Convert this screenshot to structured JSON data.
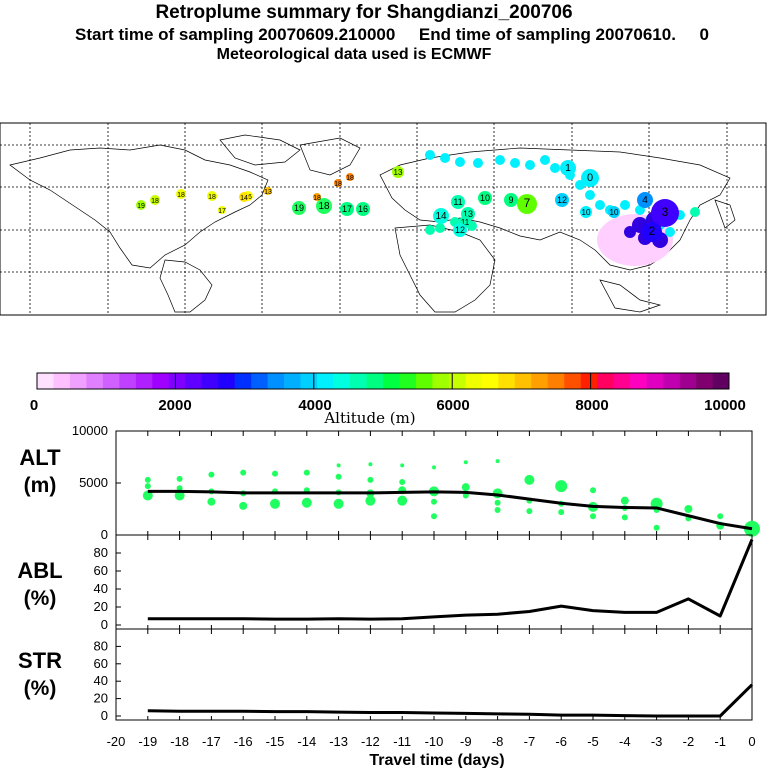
{
  "header": {
    "title": "Retroplume summary for Shangdianzi_200706",
    "line2": "Start time of sampling 20070609.210000     End time of sampling 20070610.     0",
    "line3": "Meteorological data used is ECMWF"
  },
  "colorbar": {
    "label": "Altitude (m)",
    "ticks": [
      "0",
      "2000",
      "4000",
      "6000",
      "8000",
      "10000"
    ],
    "colors": [
      "#ffe0ff",
      "#ffc0ff",
      "#f0a0ff",
      "#e080ff",
      "#d060ff",
      "#c040ff",
      "#b020ff",
      "#a000ff",
      "#8000ff",
      "#6000ff",
      "#4000ff",
      "#2000ff",
      "#0030ff",
      "#0060ff",
      "#0090ff",
      "#00b0ff",
      "#00d0ff",
      "#00f0ff",
      "#00ffe0",
      "#00ffb0",
      "#00ff80",
      "#00ff40",
      "#20ff20",
      "#60ff00",
      "#a0ff00",
      "#c8ff00",
      "#f0ff00",
      "#ffff00",
      "#ffe000",
      "#ffc000",
      "#ffa000",
      "#ff8000",
      "#ff5000",
      "#ff2000",
      "#ff0060",
      "#ff0090",
      "#ff00c0",
      "#e000c0",
      "#c000b0",
      "#a00090",
      "#800070",
      "#600060"
    ]
  },
  "map_points": [
    {
      "label": "19",
      "color": "#a0ff00"
    },
    {
      "label": "18",
      "color": "#c8ff00"
    },
    {
      "label": "18",
      "color": "#f0ff00"
    },
    {
      "label": "18",
      "color": "#f0ff00"
    },
    {
      "label": "17",
      "color": "#f0ff00"
    },
    {
      "label": "16",
      "color": "#ffff00"
    },
    {
      "label": "14",
      "color": "#ffe000"
    },
    {
      "label": "13",
      "color": "#ffc000"
    },
    {
      "label": "19",
      "color": "#20ff60"
    },
    {
      "label": "18",
      "color": "#20ff60"
    },
    {
      "label": "18",
      "color": "#ffa000"
    },
    {
      "label": "17",
      "color": "#00ff80"
    },
    {
      "label": "16",
      "color": "#00ff80"
    },
    {
      "label": "18",
      "color": "#ff8000"
    },
    {
      "label": "13",
      "color": "#a0ff00"
    },
    {
      "label": "18",
      "color": "#ff8000"
    },
    {
      "label": "11",
      "color": "#00ffb0"
    },
    {
      "label": "10",
      "color": "#00ff80"
    },
    {
      "label": "9",
      "color": "#00ff80"
    },
    {
      "label": "7",
      "color": "#60ff00"
    },
    {
      "label": "14",
      "color": "#00ffe0"
    },
    {
      "label": "13",
      "color": "#00ffb0"
    },
    {
      "label": "11",
      "color": "#00ffb0"
    },
    {
      "label": "12",
      "color": "#00ffe0"
    },
    {
      "label": "12",
      "color": "#00d0ff"
    },
    {
      "label": "10",
      "color": "#00f0ff"
    },
    {
      "label": "0",
      "color": "#00f0ff"
    },
    {
      "label": "4",
      "color": "#0090ff"
    },
    {
      "label": "3",
      "color": "#4000ff"
    },
    {
      "label": "2",
      "color": "#2000ff"
    },
    {
      "label": "1",
      "color": "#00f0ff"
    },
    {
      "label": "10",
      "color": "#00d0ff"
    }
  ],
  "chart_data": [
    {
      "type": "scatter+line",
      "ylabel": "ALT\n(m)",
      "ylabel_lines": [
        "ALT",
        "(m)"
      ],
      "ylim": [
        0,
        10000
      ],
      "yticks": [
        "0",
        "5000",
        "10000"
      ],
      "x": [
        -19,
        -18,
        -17,
        -16,
        -15,
        -14,
        -13,
        -12,
        -11,
        -10,
        -9,
        -8,
        -7,
        -6,
        -5,
        -4,
        -3,
        -2,
        -1,
        0
      ],
      "line_values": [
        4200,
        4200,
        4150,
        4050,
        4050,
        4050,
        4050,
        4050,
        4100,
        4150,
        4100,
        3850,
        3450,
        3050,
        2750,
        2650,
        2600,
        1850,
        1100,
        600
      ],
      "scatter_points": [
        {
          "x": -19,
          "y": 5300,
          "s": 3
        },
        {
          "x": -19,
          "y": 4700,
          "s": 3
        },
        {
          "x": -19,
          "y": 3800,
          "s": 5
        },
        {
          "x": -18,
          "y": 5400,
          "s": 3
        },
        {
          "x": -18,
          "y": 4500,
          "s": 3
        },
        {
          "x": -18,
          "y": 3800,
          "s": 5
        },
        {
          "x": -17,
          "y": 5800,
          "s": 3
        },
        {
          "x": -17,
          "y": 4200,
          "s": 3
        },
        {
          "x": -17,
          "y": 3200,
          "s": 4
        },
        {
          "x": -16,
          "y": 6000,
          "s": 3
        },
        {
          "x": -16,
          "y": 4000,
          "s": 3
        },
        {
          "x": -16,
          "y": 2800,
          "s": 4
        },
        {
          "x": -15,
          "y": 5900,
          "s": 3
        },
        {
          "x": -15,
          "y": 4200,
          "s": 3
        },
        {
          "x": -15,
          "y": 3000,
          "s": 5
        },
        {
          "x": -14,
          "y": 6000,
          "s": 3
        },
        {
          "x": -14,
          "y": 4300,
          "s": 3
        },
        {
          "x": -14,
          "y": 3100,
          "s": 5
        },
        {
          "x": -13,
          "y": 6700,
          "s": 2
        },
        {
          "x": -13,
          "y": 5600,
          "s": 3
        },
        {
          "x": -13,
          "y": 4100,
          "s": 3
        },
        {
          "x": -13,
          "y": 3000,
          "s": 5
        },
        {
          "x": -12,
          "y": 6800,
          "s": 2
        },
        {
          "x": -12,
          "y": 5300,
          "s": 3
        },
        {
          "x": -12,
          "y": 4000,
          "s": 4
        },
        {
          "x": -12,
          "y": 3300,
          "s": 5
        },
        {
          "x": -11,
          "y": 6700,
          "s": 2
        },
        {
          "x": -11,
          "y": 5100,
          "s": 3
        },
        {
          "x": -11,
          "y": 4300,
          "s": 4
        },
        {
          "x": -11,
          "y": 3300,
          "s": 5
        },
        {
          "x": -10,
          "y": 6500,
          "s": 2
        },
        {
          "x": -10,
          "y": 4200,
          "s": 5
        },
        {
          "x": -10,
          "y": 3200,
          "s": 3
        },
        {
          "x": -10,
          "y": 1800,
          "s": 3
        },
        {
          "x": -9,
          "y": 7000,
          "s": 2
        },
        {
          "x": -9,
          "y": 4600,
          "s": 4
        },
        {
          "x": -9,
          "y": 3800,
          "s": 3
        },
        {
          "x": -8,
          "y": 7100,
          "s": 2
        },
        {
          "x": -8,
          "y": 4000,
          "s": 5
        },
        {
          "x": -8,
          "y": 3100,
          "s": 3
        },
        {
          "x": -8,
          "y": 2400,
          "s": 3
        },
        {
          "x": -7,
          "y": 5300,
          "s": 5
        },
        {
          "x": -7,
          "y": 3300,
          "s": 3
        },
        {
          "x": -7,
          "y": 2300,
          "s": 3
        },
        {
          "x": -6,
          "y": 4700,
          "s": 6
        },
        {
          "x": -6,
          "y": 3000,
          "s": 3
        },
        {
          "x": -6,
          "y": 2200,
          "s": 3
        },
        {
          "x": -5,
          "y": 4300,
          "s": 3
        },
        {
          "x": -5,
          "y": 2700,
          "s": 5
        },
        {
          "x": -5,
          "y": 1800,
          "s": 3
        },
        {
          "x": -4,
          "y": 3300,
          "s": 4
        },
        {
          "x": -4,
          "y": 2600,
          "s": 3
        },
        {
          "x": -4,
          "y": 1700,
          "s": 3
        },
        {
          "x": -3,
          "y": 3000,
          "s": 6
        },
        {
          "x": -3,
          "y": 2400,
          "s": 3
        },
        {
          "x": -3,
          "y": 700,
          "s": 3
        },
        {
          "x": -2,
          "y": 2500,
          "s": 4
        },
        {
          "x": -2,
          "y": 1600,
          "s": 3
        },
        {
          "x": -1,
          "y": 1800,
          "s": 3
        },
        {
          "x": -1,
          "y": 900,
          "s": 4
        },
        {
          "x": 0,
          "y": 600,
          "s": 8
        }
      ]
    },
    {
      "type": "line",
      "ylabel_lines": [
        "ABL",
        "(%)"
      ],
      "ylim": [
        0,
        100
      ],
      "yticks": [
        "0",
        "20",
        "40",
        "60",
        "80"
      ],
      "x": [
        -19,
        -18,
        -17,
        -16,
        -15,
        -14,
        -13,
        -12,
        -11,
        -10,
        -9,
        -8,
        -7,
        -6,
        -5,
        -4,
        -3,
        -2,
        -1,
        0
      ],
      "values": [
        7,
        7,
        7,
        7,
        6.5,
        6.5,
        7,
        6.5,
        7,
        9,
        11,
        12,
        15,
        21,
        16,
        14,
        14,
        29,
        10,
        95
      ]
    },
    {
      "type": "line",
      "ylabel_lines": [
        "STR",
        "(%)"
      ],
      "ylim": [
        0,
        100
      ],
      "yticks": [
        "0",
        "20",
        "40",
        "60",
        "80"
      ],
      "xlabel": "Travel time (days)",
      "xticks": [
        "-20",
        "-19",
        "-18",
        "-17",
        "-16",
        "-15",
        "-14",
        "-13",
        "-12",
        "-11",
        "-10",
        "-9",
        "-8",
        "-7",
        "-6",
        "-5",
        "-4",
        "-3",
        "-2",
        "-1",
        "0"
      ],
      "x": [
        -19,
        -18,
        -17,
        -16,
        -15,
        -14,
        -13,
        -12,
        -11,
        -10,
        -9,
        -8,
        -7,
        -6,
        -5,
        -4,
        -3,
        -2,
        -1,
        0
      ],
      "values": [
        6,
        5.5,
        5.5,
        5.5,
        5,
        5,
        4.5,
        4,
        4,
        3.5,
        3,
        2.5,
        2,
        1,
        1,
        0.5,
        0,
        0,
        0,
        36
      ]
    }
  ]
}
